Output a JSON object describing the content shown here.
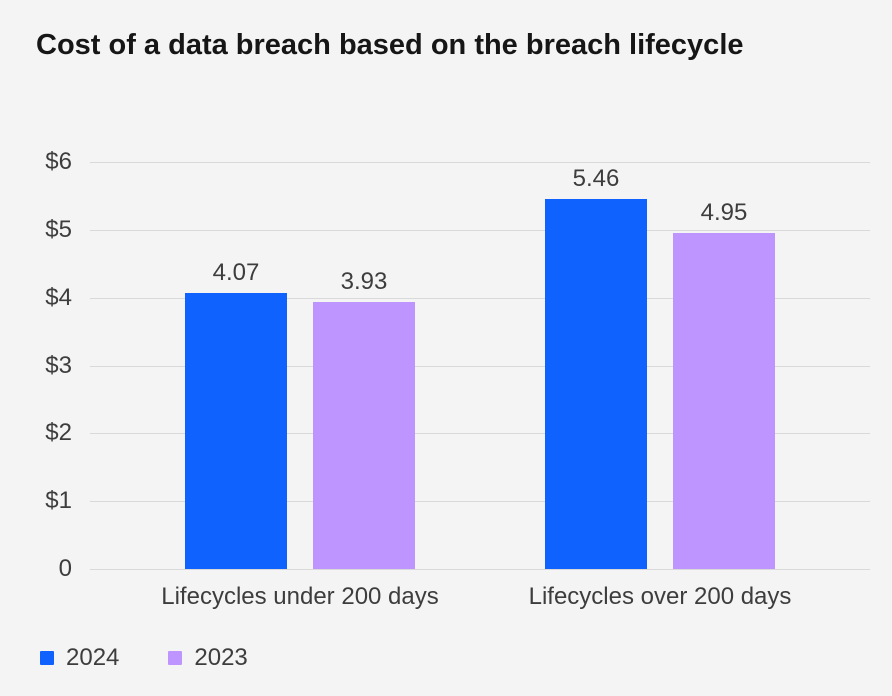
{
  "title": "Cost of a data breach based on the breach lifecycle",
  "colors": {
    "background": "#f4f4f4",
    "gridline": "#d9d9d9",
    "title_text": "#161616",
    "axis_text": "#3d3d3d",
    "series_2024": "#0f62fe",
    "series_2023": "#be95ff"
  },
  "chart_data": {
    "type": "bar",
    "title": "Cost of a data breach based on the breach lifecycle",
    "xlabel": "",
    "ylabel": "",
    "ylim": [
      0,
      6
    ],
    "grid": "horizontal",
    "legend_position": "bottom-left",
    "categories": [
      "Lifecycles under 200 days",
      "Lifecycles over 200 days"
    ],
    "yticks": [
      {
        "value": 0,
        "label": "0"
      },
      {
        "value": 1,
        "label": "$1"
      },
      {
        "value": 2,
        "label": "$2"
      },
      {
        "value": 3,
        "label": "$3"
      },
      {
        "value": 4,
        "label": "$4"
      },
      {
        "value": 5,
        "label": "$5"
      },
      {
        "value": 6,
        "label": "$6"
      }
    ],
    "series": [
      {
        "name": "2024",
        "color": "#0f62fe",
        "data": [
          {
            "category": "Lifecycles under 200 days",
            "value": 4.07,
            "label": "4.07"
          },
          {
            "category": "Lifecycles over 200 days",
            "value": 5.46,
            "label": "5.46"
          }
        ]
      },
      {
        "name": "2023",
        "color": "#be95ff",
        "data": [
          {
            "category": "Lifecycles under 200 days",
            "value": 3.93,
            "label": "3.93"
          },
          {
            "category": "Lifecycles over 200 days",
            "value": 4.95,
            "label": "4.95"
          }
        ]
      }
    ]
  }
}
